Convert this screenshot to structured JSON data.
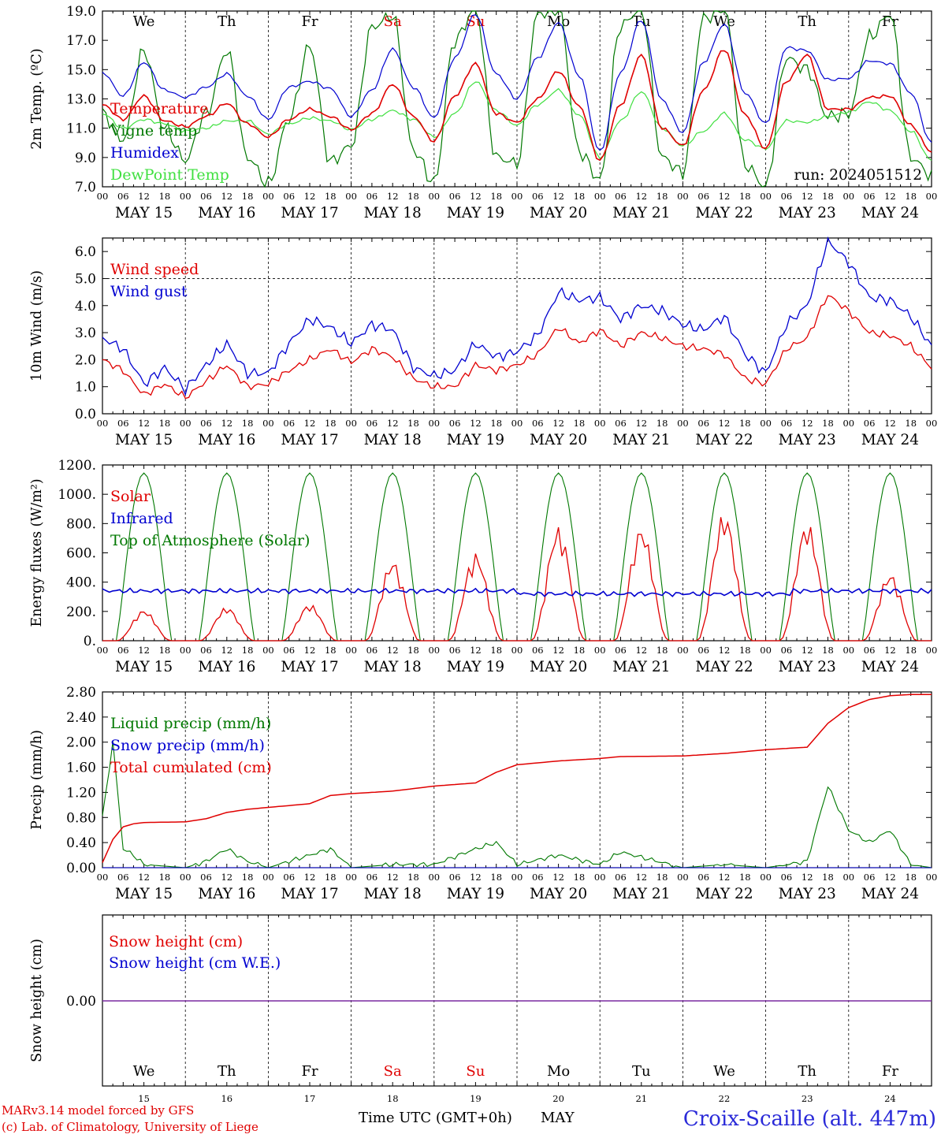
{
  "meta": {
    "run_label": "run: 2024051512",
    "footer_left_1": "MARv3.14 model forced by GFS",
    "footer_left_2": "(c) Lab. of Climatology, University of Liege",
    "footer_axis_label": "Time UTC (GMT+0h)",
    "footer_month": "MAY",
    "station": "Croix-Scaille (alt. 447m)"
  },
  "time_axis": {
    "hour_ticks": [
      "00",
      "06",
      "12",
      "18"
    ],
    "final_tick": "00",
    "date_labels": [
      "MAY 15",
      "MAY 16",
      "MAY 17",
      "MAY 18",
      "MAY 19",
      "MAY 20",
      "MAY 21",
      "MAY 22",
      "MAY 23",
      "MAY 24"
    ],
    "weekdays": [
      "We",
      "Th",
      "Fr",
      "Sa",
      "Su",
      "Mo",
      "Tu",
      "We",
      "Th",
      "Fr"
    ],
    "weekday_colors": [
      "#000000",
      "#000000",
      "#000000",
      "#e00000",
      "#e00000",
      "#000000",
      "#000000",
      "#000000",
      "#000000",
      "#000000"
    ],
    "day_numbers": [
      "15",
      "16",
      "17",
      "18",
      "19",
      "20",
      "21",
      "22",
      "23",
      "24"
    ]
  },
  "chart_data": [
    {
      "id": "temp",
      "type": "line",
      "ylabel": "2m Temp. (ºC)",
      "ylim": [
        7.0,
        19.0
      ],
      "yticks": [
        "7.0",
        "9.0",
        "11.0",
        "13.0",
        "15.0",
        "17.0",
        "19.0"
      ],
      "x_unit": "hours since 2024-05-15 00 UTC",
      "series": [
        {
          "name": "Temperature",
          "color": "#e00000",
          "x": [
            0,
            6,
            12,
            18,
            24,
            30,
            36,
            42,
            48,
            54,
            60,
            66,
            72,
            78,
            84,
            90,
            96,
            102,
            108,
            114,
            120,
            126,
            132,
            138,
            144,
            150,
            156,
            162,
            168,
            174,
            180,
            186,
            192,
            198,
            204,
            210,
            216,
            222,
            228,
            234,
            240
          ],
          "y": [
            12.6,
            11.6,
            13.2,
            11.5,
            11.1,
            11.8,
            12.7,
            11.3,
            10.4,
            11.6,
            12.3,
            11.8,
            10.9,
            12.0,
            14.0,
            11.8,
            10.1,
            13.2,
            15.4,
            12.0,
            11.4,
            13.0,
            14.9,
            12.5,
            8.8,
            12.6,
            16.0,
            11.0,
            9.8,
            13.6,
            16.4,
            11.9,
            9.6,
            14.2,
            16.0,
            12.3,
            12.3,
            13.1,
            13.2,
            11.2,
            9.4
          ]
        },
        {
          "name": "Vigne temp",
          "color": "#007800",
          "x": [
            0,
            6,
            12,
            18,
            24,
            30,
            36,
            42,
            48,
            54,
            60,
            66,
            72,
            78,
            84,
            90,
            96,
            102,
            108,
            114,
            120,
            126,
            132,
            138,
            144,
            150,
            156,
            162,
            168,
            174,
            180,
            186,
            192,
            198,
            204,
            210,
            216,
            222,
            228,
            234,
            240
          ],
          "y": [
            12.0,
            10.2,
            16.3,
            11.0,
            8.8,
            12.0,
            16.3,
            9.0,
            7.2,
            11.6,
            16.6,
            8.7,
            9.8,
            17.9,
            18.7,
            9.5,
            7.3,
            17.0,
            19.2,
            9.0,
            8.6,
            18.8,
            19.2,
            9.4,
            7.5,
            18.0,
            19.2,
            9.0,
            8.0,
            18.5,
            19.3,
            8.5,
            7.0,
            15.8,
            15.0,
            11.8,
            12.0,
            17.2,
            18.8,
            9.0,
            7.8
          ]
        },
        {
          "name": "Humidex",
          "color": "#0000d0",
          "x": [
            0,
            6,
            12,
            18,
            24,
            30,
            36,
            42,
            48,
            54,
            60,
            66,
            72,
            78,
            84,
            90,
            96,
            102,
            108,
            114,
            120,
            126,
            132,
            138,
            144,
            150,
            156,
            162,
            168,
            174,
            180,
            186,
            192,
            198,
            204,
            210,
            216,
            222,
            228,
            234,
            240
          ],
          "y": [
            14.8,
            13.2,
            15.5,
            13.6,
            13.1,
            13.8,
            14.7,
            13.2,
            11.6,
            13.8,
            14.2,
            13.7,
            11.8,
            13.6,
            16.4,
            13.8,
            11.7,
            15.8,
            18.8,
            14.7,
            13.0,
            15.8,
            18.2,
            14.6,
            9.4,
            14.8,
            18.4,
            12.9,
            10.7,
            15.5,
            18.1,
            13.4,
            11.3,
            16.5,
            16.3,
            14.3,
            14.4,
            15.6,
            15.4,
            13.4,
            10.0
          ]
        },
        {
          "name": "DewPoint Temp",
          "color": "#40e040",
          "x": [
            0,
            6,
            12,
            18,
            24,
            30,
            36,
            42,
            48,
            54,
            60,
            66,
            72,
            78,
            84,
            90,
            96,
            102,
            108,
            114,
            120,
            126,
            132,
            138,
            144,
            150,
            156,
            162,
            168,
            174,
            180,
            186,
            192,
            198,
            204,
            210,
            216,
            222,
            228,
            234,
            240
          ],
          "y": [
            12.0,
            11.0,
            11.6,
            11.3,
            10.8,
            11.0,
            11.5,
            11.5,
            10.6,
            11.3,
            11.7,
            11.5,
            10.9,
            11.6,
            12.2,
            11.6,
            10.4,
            12.0,
            14.2,
            12.2,
            11.2,
            12.6,
            13.6,
            11.9,
            9.0,
            11.5,
            13.5,
            11.0,
            9.8,
            10.8,
            12.0,
            10.2,
            9.6,
            11.5,
            11.4,
            11.8,
            12.1,
            12.8,
            12.2,
            10.8,
            8.8
          ]
        }
      ]
    },
    {
      "id": "wind",
      "type": "line",
      "ylabel": "10m Wind (m/s)",
      "ylim": [
        0.0,
        6.5
      ],
      "yticks": [
        "0.0",
        "1.0",
        "2.0",
        "3.0",
        "4.0",
        "5.0",
        "6.0"
      ],
      "reference_line": 5.0,
      "x_unit": "hours since 2024-05-15 00 UTC",
      "series": [
        {
          "name": "Wind speed",
          "color": "#e00000",
          "x": [
            0,
            6,
            12,
            18,
            24,
            30,
            36,
            42,
            48,
            54,
            60,
            66,
            72,
            78,
            84,
            90,
            96,
            102,
            108,
            114,
            120,
            126,
            132,
            138,
            144,
            150,
            156,
            162,
            168,
            174,
            180,
            186,
            192,
            198,
            204,
            210,
            216,
            222,
            228,
            234,
            240
          ],
          "y": [
            2.0,
            1.6,
            0.7,
            1.1,
            0.6,
            1.2,
            1.8,
            1.0,
            1.1,
            1.6,
            2.0,
            2.4,
            1.9,
            2.4,
            2.1,
            1.3,
            1.0,
            1.0,
            1.8,
            1.6,
            1.8,
            2.2,
            3.2,
            2.6,
            3.1,
            2.5,
            3.0,
            2.8,
            2.5,
            2.4,
            2.2,
            1.3,
            1.1,
            2.4,
            2.8,
            4.4,
            3.8,
            3.0,
            2.9,
            2.5,
            1.7
          ]
        },
        {
          "name": "Wind gust",
          "color": "#0000d0",
          "x": [
            0,
            6,
            12,
            18,
            24,
            30,
            36,
            42,
            48,
            54,
            60,
            66,
            72,
            78,
            84,
            90,
            96,
            102,
            108,
            114,
            120,
            126,
            132,
            138,
            144,
            150,
            156,
            162,
            168,
            174,
            180,
            186,
            192,
            198,
            204,
            210,
            216,
            222,
            228,
            234,
            240
          ],
          "y": [
            2.8,
            2.4,
            1.1,
            1.7,
            0.9,
            1.8,
            2.6,
            1.5,
            1.5,
            2.6,
            3.5,
            3.2,
            2.6,
            3.3,
            3.1,
            1.7,
            1.4,
            1.6,
            2.6,
            2.1,
            2.3,
            2.9,
            4.5,
            4.2,
            4.3,
            3.5,
            4.0,
            3.8,
            3.3,
            3.1,
            3.6,
            2.2,
            1.5,
            3.3,
            4.0,
            6.4,
            5.6,
            4.3,
            4.2,
            3.6,
            2.5
          ]
        }
      ]
    },
    {
      "id": "energy",
      "type": "line",
      "ylabel": "Energy fluxes (W/m²)",
      "ylim": [
        0,
        1200
      ],
      "yticks": [
        "0.",
        "200.",
        "400.",
        "600.",
        "800.",
        "1000.",
        "1200."
      ],
      "x_unit": "hours since 2024-05-15 00 UTC",
      "daily_peak_solar": [
        210,
        230,
        250,
        550,
        600,
        780,
        780,
        880,
        810,
        460
      ],
      "infrared_level": 340,
      "toa_peak": 1145,
      "series": [
        {
          "name": "Solar",
          "color": "#e00000"
        },
        {
          "name": "Infrared",
          "color": "#0000d0"
        },
        {
          "name": "Top of Atmosphere (Solar)",
          "color": "#007800"
        }
      ]
    },
    {
      "id": "precip",
      "type": "line",
      "ylabel": "Precip (mm/h)",
      "ylim": [
        0.0,
        2.8
      ],
      "yticks": [
        "0.00",
        "0.40",
        "0.80",
        "1.20",
        "1.60",
        "2.00",
        "2.40",
        "2.80"
      ],
      "x_unit": "hours since 2024-05-15 00 UTC",
      "series": [
        {
          "name": "Liquid precip (mm/h)",
          "color": "#007800",
          "x": [
            0,
            3,
            6,
            9,
            12,
            24,
            30,
            36,
            42,
            48,
            60,
            66,
            72,
            84,
            96,
            108,
            114,
            120,
            132,
            144,
            150,
            168,
            180,
            192,
            204,
            210,
            216,
            222,
            228,
            234,
            240
          ],
          "y": [
            0.8,
            2.0,
            0.3,
            0.2,
            0.05,
            0.0,
            0.1,
            0.3,
            0.1,
            0.0,
            0.2,
            0.3,
            0.0,
            0.05,
            0.05,
            0.3,
            0.4,
            0.05,
            0.2,
            0.05,
            0.25,
            0.0,
            0.05,
            0.0,
            0.1,
            1.3,
            0.6,
            0.4,
            0.6,
            0.05,
            0.0
          ]
        },
        {
          "name": "Snow precip (mm/h)",
          "color": "#0000d0",
          "x": [
            0,
            240
          ],
          "y": [
            0.0,
            0.0
          ]
        },
        {
          "name": "Total cumulated (cm)",
          "color": "#e00000",
          "x": [
            0,
            3,
            6,
            9,
            12,
            24,
            30,
            36,
            42,
            48,
            60,
            66,
            72,
            84,
            96,
            108,
            114,
            120,
            132,
            144,
            150,
            168,
            180,
            192,
            204,
            210,
            216,
            222,
            228,
            234,
            240
          ],
          "y": [
            0.08,
            0.45,
            0.65,
            0.7,
            0.72,
            0.73,
            0.78,
            0.88,
            0.93,
            0.96,
            1.02,
            1.15,
            1.18,
            1.22,
            1.3,
            1.35,
            1.52,
            1.64,
            1.7,
            1.74,
            1.77,
            1.78,
            1.82,
            1.88,
            1.92,
            2.3,
            2.55,
            2.68,
            2.74,
            2.76,
            2.76
          ]
        }
      ]
    },
    {
      "id": "snow",
      "type": "line",
      "ylabel": "Snow height (cm)",
      "yticks": [
        "0.00"
      ],
      "x_unit": "hours since 2024-05-15 00 UTC",
      "series": [
        {
          "name": "Snow height (cm)",
          "color": "#e00000",
          "x": [
            0,
            240
          ],
          "y": [
            0.0,
            0.0
          ]
        },
        {
          "name": "Snow height (cm W.E.)",
          "color": "#0000d0",
          "x": [
            0,
            240
          ],
          "y": [
            0.0,
            0.0
          ]
        }
      ]
    }
  ]
}
